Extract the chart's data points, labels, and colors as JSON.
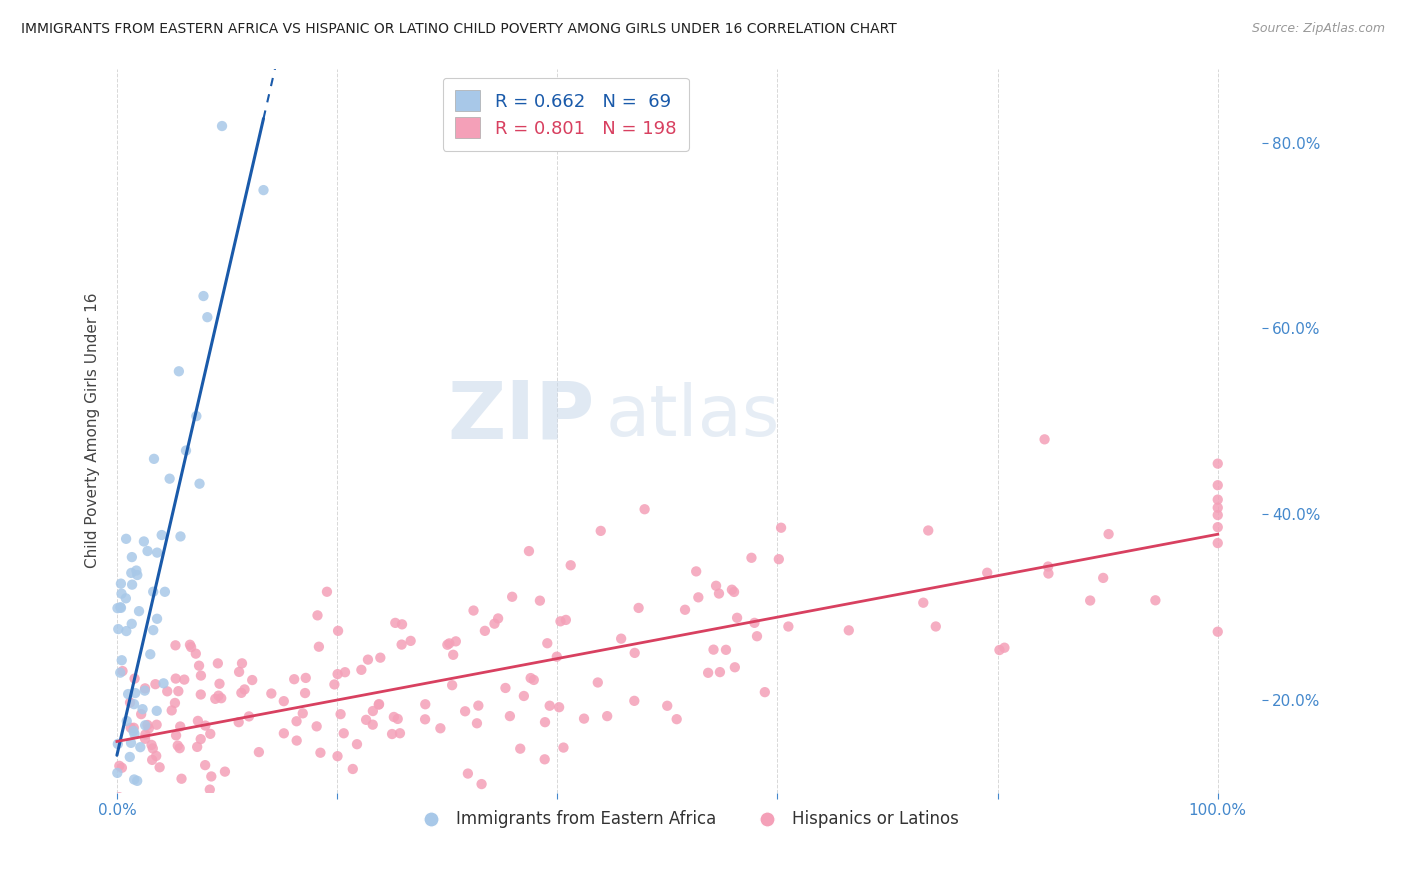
{
  "title": "IMMIGRANTS FROM EASTERN AFRICA VS HISPANIC OR LATINO CHILD POVERTY AMONG GIRLS UNDER 16 CORRELATION CHART",
  "source": "Source: ZipAtlas.com",
  "ylabel": "Child Poverty Among Girls Under 16",
  "blue_R": 0.662,
  "blue_N": 69,
  "pink_R": 0.801,
  "pink_N": 198,
  "blue_color": "#a8c8e8",
  "pink_color": "#f4a0b8",
  "blue_line_color": "#1a5aaa",
  "pink_line_color": "#d84060",
  "legend_label_blue": "Immigrants from Eastern Africa",
  "legend_label_pink": "Hispanics or Latinos",
  "watermark_zip": "ZIP",
  "watermark_atlas": "atlas",
  "background_color": "#ffffff",
  "grid_color": "#d8d8d8",
  "title_color": "#222222",
  "axis_label_color": "#444444",
  "tick_color": "#4488cc",
  "right_yticks": [
    0.2,
    0.4,
    0.6,
    0.8
  ],
  "right_yticklabels": [
    "20.0%",
    "40.0%",
    "60.0%",
    "80.0%"
  ],
  "ylim_min": 0.1,
  "ylim_max": 0.88,
  "xlim_min": -0.005,
  "xlim_max": 1.04
}
